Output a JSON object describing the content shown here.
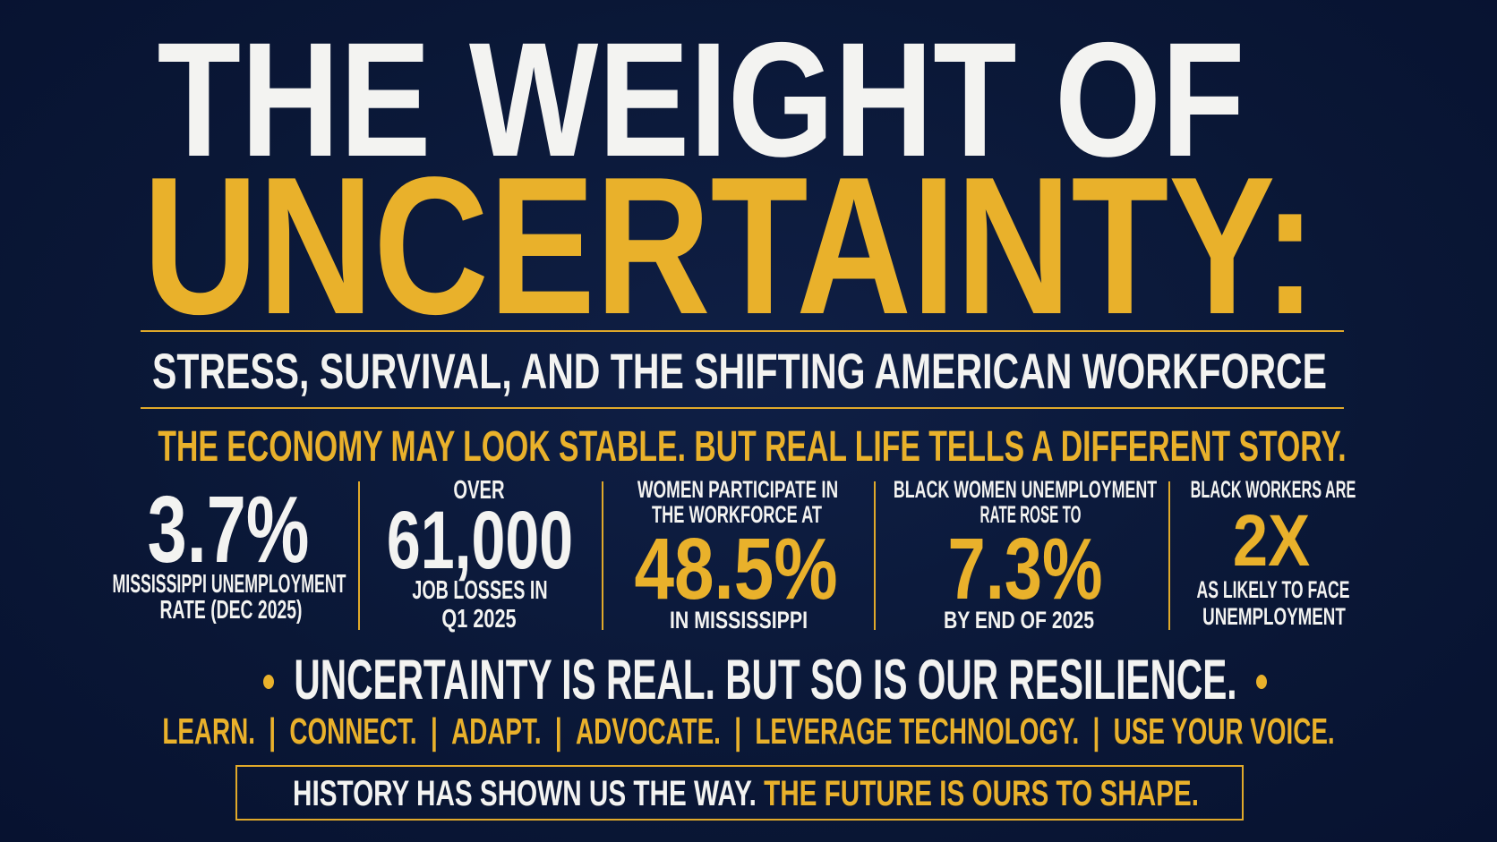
{
  "colors": {
    "background": "#0a1736",
    "accent": "#e9b12b",
    "text": "#f3f3f1"
  },
  "header": {
    "title_line1": "THE WEIGHT OF",
    "title_line2": "UNCERTAINTY:",
    "subtitle": "STRESS, SURVIVAL, AND THE SHIFTING AMERICAN WORKFORCE",
    "tagline": "THE ECONOMY MAY LOOK STABLE. BUT REAL LIFE TELLS A DIFFERENT STORY."
  },
  "stats": [
    {
      "value": "3.7%",
      "below1": "MISSISSIPPI UNEMPLOYMENT",
      "below2": "RATE (DEC 2025)"
    },
    {
      "above1": "OVER",
      "value": "61,000",
      "below1": "JOB LOSSES IN",
      "below2": "Q1 2025"
    },
    {
      "above1": "WOMEN PARTICIPATE IN",
      "above2": "THE WORKFORCE AT",
      "value": "48.5%",
      "below1": "IN MISSISSIPPI"
    },
    {
      "above1": "BLACK WOMEN UNEMPLOYMENT",
      "above2": "RATE ROSE TO",
      "value": "7.3%",
      "below1": "BY END OF 2025"
    },
    {
      "above1": "BLACK WORKERS ARE",
      "value": "2X",
      "below1": "AS LIKELY TO FACE",
      "below2": "UNEMPLOYMENT"
    }
  ],
  "resilience": "UNCERTAINTY IS REAL. BUT SO IS OUR RESILIENCE.",
  "actions": [
    "LEARN.",
    "CONNECT.",
    "ADAPT.",
    "ADVOCATE.",
    "LEVERAGE TECHNOLOGY.",
    "USE YOUR VOICE."
  ],
  "separator": "|",
  "closing": {
    "part1": "HISTORY HAS SHOWN US THE WAY.",
    "part2": "THE FUTURE IS OURS TO SHAPE."
  }
}
